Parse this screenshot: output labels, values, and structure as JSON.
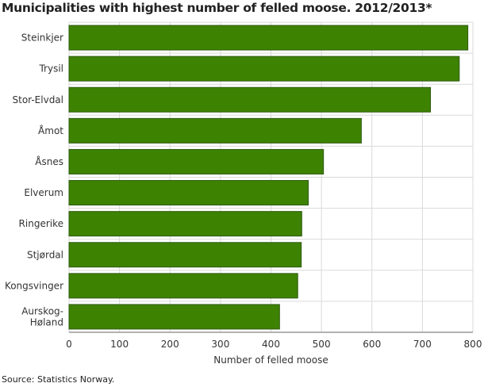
{
  "chart_data": {
    "type": "bar",
    "orientation": "horizontal",
    "title": "Municipalities with highest number of felled moose. 2012/2013*",
    "categories": [
      "Steinkjer",
      "Trysil",
      "Stor-Elvdal",
      "Åmot",
      "Åsnes",
      "Elverum",
      "Ringerike",
      "Stjørdal",
      "Kongsvinger",
      "Aurskog-Høland"
    ],
    "values": [
      790,
      773,
      716,
      579,
      504,
      474,
      461,
      460,
      453,
      417
    ],
    "xlabel": "Number of felled moose",
    "ylabel": "",
    "xlim": [
      0,
      800
    ],
    "xticks": [
      0,
      100,
      200,
      300,
      400,
      500,
      600,
      700,
      800
    ],
    "grid": true,
    "bar_color": "#3d8200",
    "source": "Source: Statistics Norway."
  }
}
